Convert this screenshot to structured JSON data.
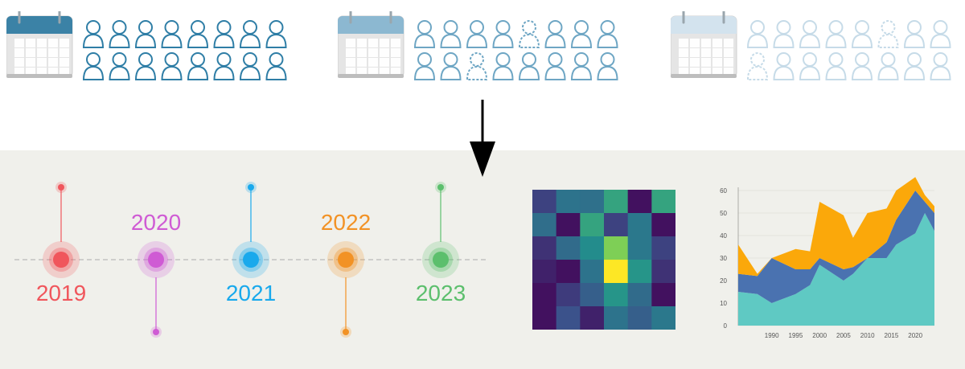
{
  "calendars": [
    {
      "id": "cal-1",
      "header_color": "#3b82a6",
      "person_color": "#2f7ea6",
      "opacity": 1.0,
      "dashed": []
    },
    {
      "id": "cal-2",
      "header_color": "#8cb8d1",
      "person_color": "#6ea6c4",
      "opacity": 1.0,
      "dashed": [
        4,
        10
      ]
    },
    {
      "id": "cal-3",
      "header_color": "#d3e3ee",
      "person_color": "#c6dbe8",
      "opacity": 1.0,
      "dashed": [
        5,
        8
      ]
    }
  ],
  "timeline": {
    "items": [
      {
        "year": "2019",
        "color": "#f0565c",
        "label_position": "below",
        "stem": "up"
      },
      {
        "year": "2020",
        "color": "#cf5bd4",
        "label_position": "above",
        "stem": "down"
      },
      {
        "year": "2021",
        "color": "#19a9ec",
        "label_position": "below",
        "stem": "up"
      },
      {
        "year": "2022",
        "color": "#f29225",
        "label_position": "above",
        "stem": "down"
      },
      {
        "year": "2023",
        "color": "#5cbf6d",
        "label_position": "below",
        "stem": "up"
      }
    ]
  },
  "chart_data": [
    {
      "type": "heatmap",
      "rows": 6,
      "cols": 6,
      "colormap": "viridis",
      "values": [
        [
          0.2,
          0.38,
          0.37,
          0.58,
          0.05,
          0.58
        ],
        [
          0.36,
          0.05,
          0.58,
          0.2,
          0.4,
          0.05
        ],
        [
          0.15,
          0.35,
          0.48,
          0.8,
          0.4,
          0.2
        ],
        [
          0.1,
          0.05,
          0.38,
          1.0,
          0.52,
          0.15
        ],
        [
          0.05,
          0.18,
          0.3,
          0.52,
          0.35,
          0.05
        ],
        [
          0.05,
          0.25,
          0.1,
          0.38,
          0.3,
          0.4
        ]
      ]
    },
    {
      "type": "area",
      "x": [
        1983,
        1987,
        1990,
        1995,
        1998,
        2000,
        2005,
        2007,
        2010,
        2014,
        2016,
        2020,
        2022,
        2024
      ],
      "series": [
        {
          "color": "#5fc9c3",
          "values": [
            15,
            14,
            10,
            14,
            18,
            27,
            20,
            23,
            30,
            30,
            36,
            41,
            50,
            42
          ]
        },
        {
          "color": "#4a72b0",
          "values": [
            8,
            8,
            20,
            11,
            7,
            3,
            5,
            3,
            0,
            7,
            11,
            19,
            5,
            8
          ]
        },
        {
          "color": "#fba80a",
          "values": [
            13,
            1,
            0,
            9,
            8,
            25,
            24,
            13,
            20,
            15,
            13,
            6,
            3,
            3
          ]
        }
      ],
      "xticks": [
        "1990",
        "1995",
        "2000",
        "2005",
        "2010",
        "2015",
        "2020"
      ],
      "yticks": [
        "0",
        "10",
        "20",
        "30",
        "40",
        "50",
        "60"
      ],
      "xlim": [
        1983,
        2024
      ],
      "ylim": [
        0,
        60
      ]
    }
  ]
}
